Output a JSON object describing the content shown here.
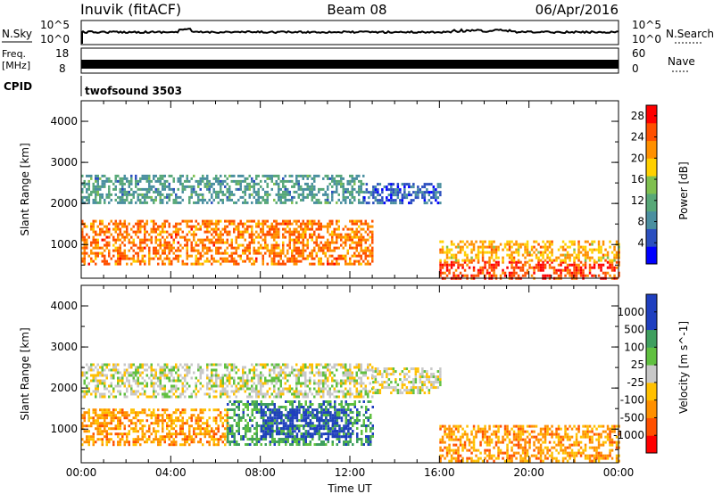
{
  "header": {
    "station": "Inuvik (fitACF)",
    "beam": "Beam 08",
    "date": "06/Apr/2016"
  },
  "panels": {
    "nsky": {
      "left_label": "N.Sky",
      "right_label": "N.Search",
      "left_ticks": [
        "10^5",
        "10^0"
      ],
      "right_ticks": [
        "10^5",
        "10^0"
      ]
    },
    "freq": {
      "left_label_top": "Freq.",
      "left_label_bottom": "[MHz]",
      "right_label": "Nave",
      "left_ticks": [
        "18",
        "8"
      ],
      "right_ticks": [
        "60",
        "0"
      ]
    },
    "cpid": {
      "label": "CPID",
      "value": "twofsound 3503"
    }
  },
  "colors": {
    "power_scale": [
      "#0000ff",
      "#2b4fbf",
      "#4a8fa0",
      "#58a878",
      "#80c050",
      "#ffd000",
      "#ff9000",
      "#ff5000",
      "#ff0000"
    ],
    "velocity_scale": [
      "#ff0000",
      "#ff5000",
      "#ff9000",
      "#ffc000",
      "#c8c8c8",
      "#60c040",
      "#3f9f5f",
      "#1f3fbf",
      "#1f3fbf"
    ]
  },
  "chart_data": [
    {
      "type": "heatmap",
      "title": "",
      "xlabel": "",
      "ylabel": "Slant Range [km]",
      "ylim": [
        180,
        4500
      ],
      "xlim": [
        0,
        24
      ],
      "ytick_labels": [
        "1000",
        "2000",
        "3000",
        "4000"
      ],
      "colorbar_label": "Power [dB]",
      "colorbar_ticks": [
        "4",
        "8",
        "12",
        "16",
        "20",
        "24",
        "28"
      ],
      "colorbar_range": [
        0,
        30
      ],
      "bands": [
        {
          "x_start": 0.0,
          "x_end": 12.6,
          "range_low": 2000,
          "range_high": 2700,
          "level": 10
        },
        {
          "x_start": 0.0,
          "x_end": 13.0,
          "range_low": 550,
          "range_high": 1600,
          "level": 23
        },
        {
          "x_start": 12.6,
          "x_end": 16.0,
          "range_low": 2000,
          "range_high": 2500,
          "level": 6
        },
        {
          "x_start": 16.0,
          "x_end": 24.0,
          "range_low": 180,
          "range_high": 600,
          "level": 26
        },
        {
          "x_start": 16.0,
          "x_end": 24.0,
          "range_low": 600,
          "range_high": 1100,
          "level": 20
        }
      ]
    },
    {
      "type": "heatmap",
      "title": "",
      "xlabel": "Time UT",
      "ylabel": "Slant Range [km]",
      "ylim": [
        180,
        4500
      ],
      "xlim": [
        0,
        24
      ],
      "ytick_labels": [
        "1000",
        "2000",
        "3000",
        "4000"
      ],
      "xtick_labels": [
        "00:00",
        "04:00",
        "08:00",
        "12:00",
        "16:00",
        "20:00",
        "00:00"
      ],
      "colorbar_label": "Velocity [m s^-1]",
      "colorbar_ticks": [
        "1000",
        "500",
        "100",
        "25",
        "-25",
        "-100",
        "-500",
        "-1000"
      ],
      "colorbar_range": [
        -1000,
        1000
      ],
      "bands": [
        {
          "x_start": 0.0,
          "x_end": 13.0,
          "range_low": 1800,
          "range_high": 2600,
          "level": 0
        },
        {
          "x_start": 0.0,
          "x_end": 6.5,
          "range_low": 600,
          "range_high": 1500,
          "level": -400
        },
        {
          "x_start": 6.5,
          "x_end": 13.0,
          "range_low": 600,
          "range_high": 1700,
          "level": 400
        },
        {
          "x_start": 8.0,
          "x_end": 12.0,
          "range_low": 800,
          "range_high": 1500,
          "level": 900
        },
        {
          "x_start": 13.0,
          "x_end": 16.0,
          "range_low": 1900,
          "range_high": 2500,
          "level": 0
        },
        {
          "x_start": 16.0,
          "x_end": 24.0,
          "range_low": 200,
          "range_high": 1100,
          "level": -400
        }
      ]
    }
  ]
}
